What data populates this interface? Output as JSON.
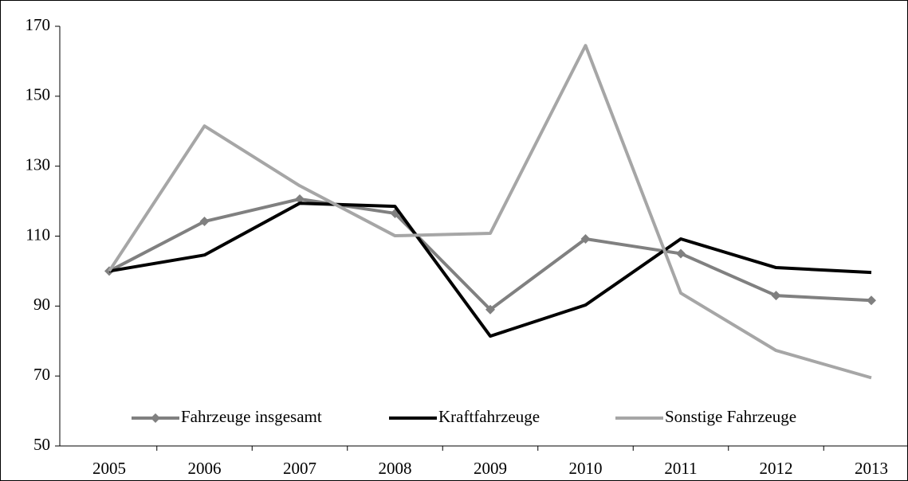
{
  "chart_data": {
    "type": "line",
    "categories": [
      "2005",
      "2006",
      "2007",
      "2008",
      "2009",
      "2010",
      "2011",
      "2012",
      "2013"
    ],
    "series": [
      {
        "name": "Fahrzeuge insgesamt",
        "color": "#808080",
        "marker": "diamond",
        "values": [
          100,
          114.2,
          120.6,
          116.5,
          89,
          109.2,
          105,
          93,
          91.6
        ]
      },
      {
        "name": "Kraftfahrzeuge",
        "color": "#000000",
        "values": [
          100,
          104.6,
          119.4,
          118.5,
          81.4,
          90.3,
          109.2,
          101,
          99.6
        ]
      },
      {
        "name": "Sonstige Fahrzeuge",
        "color": "#a6a6a6",
        "values": [
          100,
          141.5,
          124.4,
          110.1,
          110.8,
          164.5,
          93.7,
          77.3,
          69.5
        ]
      }
    ],
    "ylim": [
      50,
      170
    ],
    "yticks": [
      50,
      70,
      90,
      110,
      130,
      150,
      170
    ],
    "grid": false,
    "legend": "bottom"
  }
}
